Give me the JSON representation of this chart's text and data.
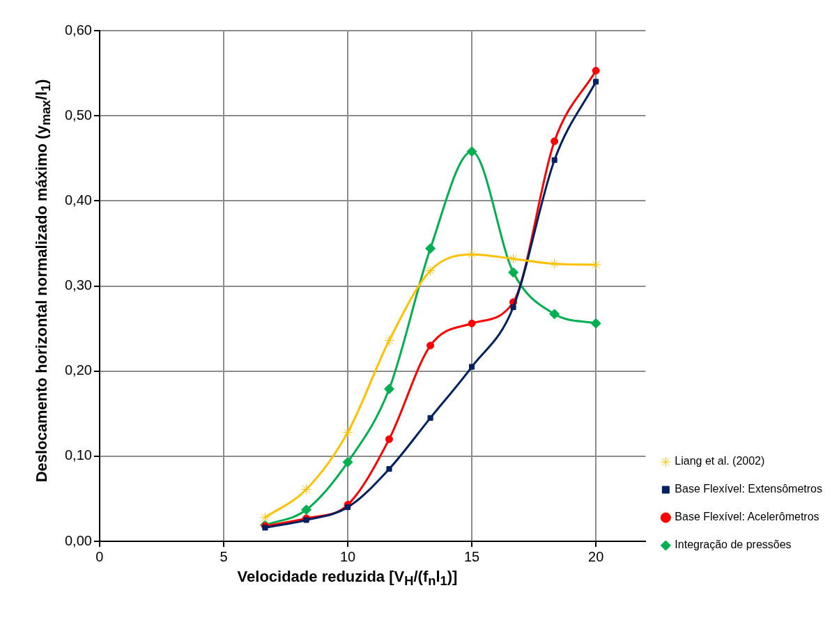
{
  "chart_data": {
    "type": "line",
    "xlabel": "Velocidade reduzida [V$_{H}$/(f$_{n}$l$_{1}$)]",
    "ylabel": "Deslocamento horizontal normalizado máximo (y$_{max}$/l$_{1}$)",
    "x": [
      6.67,
      8.33,
      10,
      11.67,
      13.33,
      15,
      16.67,
      18.33,
      20
    ],
    "series": [
      {
        "name": "Liang et al. (2002)",
        "color": "#ffc000",
        "marker": "cross",
        "values": [
          0.028,
          0.061,
          0.128,
          0.236,
          0.318,
          0.337,
          0.332,
          0.326,
          0.325
        ]
      },
      {
        "name": "Base Flexível: Extensômetros",
        "color": "#002060",
        "marker": "square",
        "values": [
          0.016,
          0.025,
          0.04,
          0.085,
          0.145,
          0.205,
          0.275,
          0.448,
          0.54
        ]
      },
      {
        "name": "Base Flexível: Acelerômetros",
        "color": "#ff0000",
        "marker": "circle",
        "values": [
          0.018,
          0.027,
          0.043,
          0.12,
          0.23,
          0.256,
          0.281,
          0.47,
          0.553
        ]
      },
      {
        "name": "Integração de pressões",
        "color": "#00b050",
        "marker": "diamond",
        "values": [
          0.019,
          0.037,
          0.093,
          0.179,
          0.344,
          0.458,
          0.316,
          0.267,
          0.256
        ]
      }
    ],
    "xlim": [
      0,
      22
    ],
    "xticks": [
      0,
      5,
      10,
      15,
      20
    ],
    "ylim": [
      0,
      0.6
    ],
    "yticks": [
      {
        "value": 0,
        "label": "0,00"
      },
      {
        "value": 0.1,
        "label": "0,10"
      },
      {
        "value": 0.2,
        "label": "0,20"
      },
      {
        "value": 0.3,
        "label": "0,30"
      },
      {
        "value": 0.4,
        "label": "0,40"
      },
      {
        "value": 0.5,
        "label": "0,50"
      },
      {
        "value": 0.6,
        "label": "0,60"
      }
    ],
    "grid": true,
    "legend": "right"
  }
}
